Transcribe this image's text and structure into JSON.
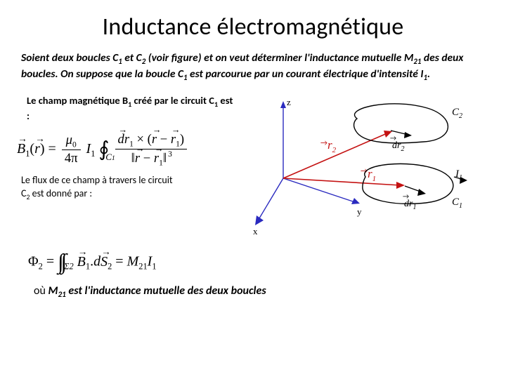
{
  "title": "Inductance électromagnétique",
  "intro_html": "Soient deux boucles C<sub class=\"sub\">1</sub> et C<sub class=\"sub\">2</sub> (voir figure) et on veut déterminer l'inductance mutuelle M<sub class=\"sub\">21</sub> des deux boucles. <span class=\"normspan\">On suppose que la boucle C<sub class=\"sub\">1</sub> est parcourue par un courant électrique d'intensité I<sub class=\"sub\">1</sub>.</span>",
  "left1_html": "Le champ magnétique B<sub class=\"sub\">1</sub> créé par le circuit C<sub class=\"sub\">1</sub> est :",
  "row2_html": "Le flux de ce champ à travers le circuit C<sub class=\"sub\">2</sub> est donné par :",
  "conclusion_html": "<span class=\"ou\">où </span>M<sub class=\"sub\">21</sub> est l'inductance mutuelle des deux boucles",
  "formula1": {
    "B": "B",
    "B_sub": "1",
    "r": "r",
    "mu0": "μ",
    "pi4": "4π",
    "I": "I",
    "I_sub": "1",
    "C_sub": "1",
    "dr1": "dr",
    "dr1_sub": "1",
    "r1": "r",
    "r1_sub": "1",
    "pow": "3"
  },
  "formula2": {
    "Phi": "Φ",
    "Phi_sub": "2",
    "Sigma_sub": "2",
    "B": "B",
    "B_sub": "1",
    "S": "S",
    "S_sub": "2",
    "d": "d",
    "M": "M",
    "M_sub": "21",
    "I": "I",
    "I_sub": "1"
  },
  "diagram": {
    "axes_color": "#2a2abf",
    "r1_color": "#c41212",
    "r2_color": "#c41212",
    "loop_color": "#000000",
    "dr_color": "#000000",
    "labels": {
      "z": "z",
      "x": "x",
      "y": "y",
      "r1": "r",
      "r1_sub": "1",
      "r2": "r",
      "r2_sub": "2",
      "C1": "C",
      "C1_sub": "1",
      "C2": "C",
      "C2_sub": "2",
      "I1": "I",
      "I1_sub": "1",
      "dr1": "dr",
      "dr1_sub": "1",
      "dr2": "dr",
      "dr2_sub": "2"
    }
  }
}
